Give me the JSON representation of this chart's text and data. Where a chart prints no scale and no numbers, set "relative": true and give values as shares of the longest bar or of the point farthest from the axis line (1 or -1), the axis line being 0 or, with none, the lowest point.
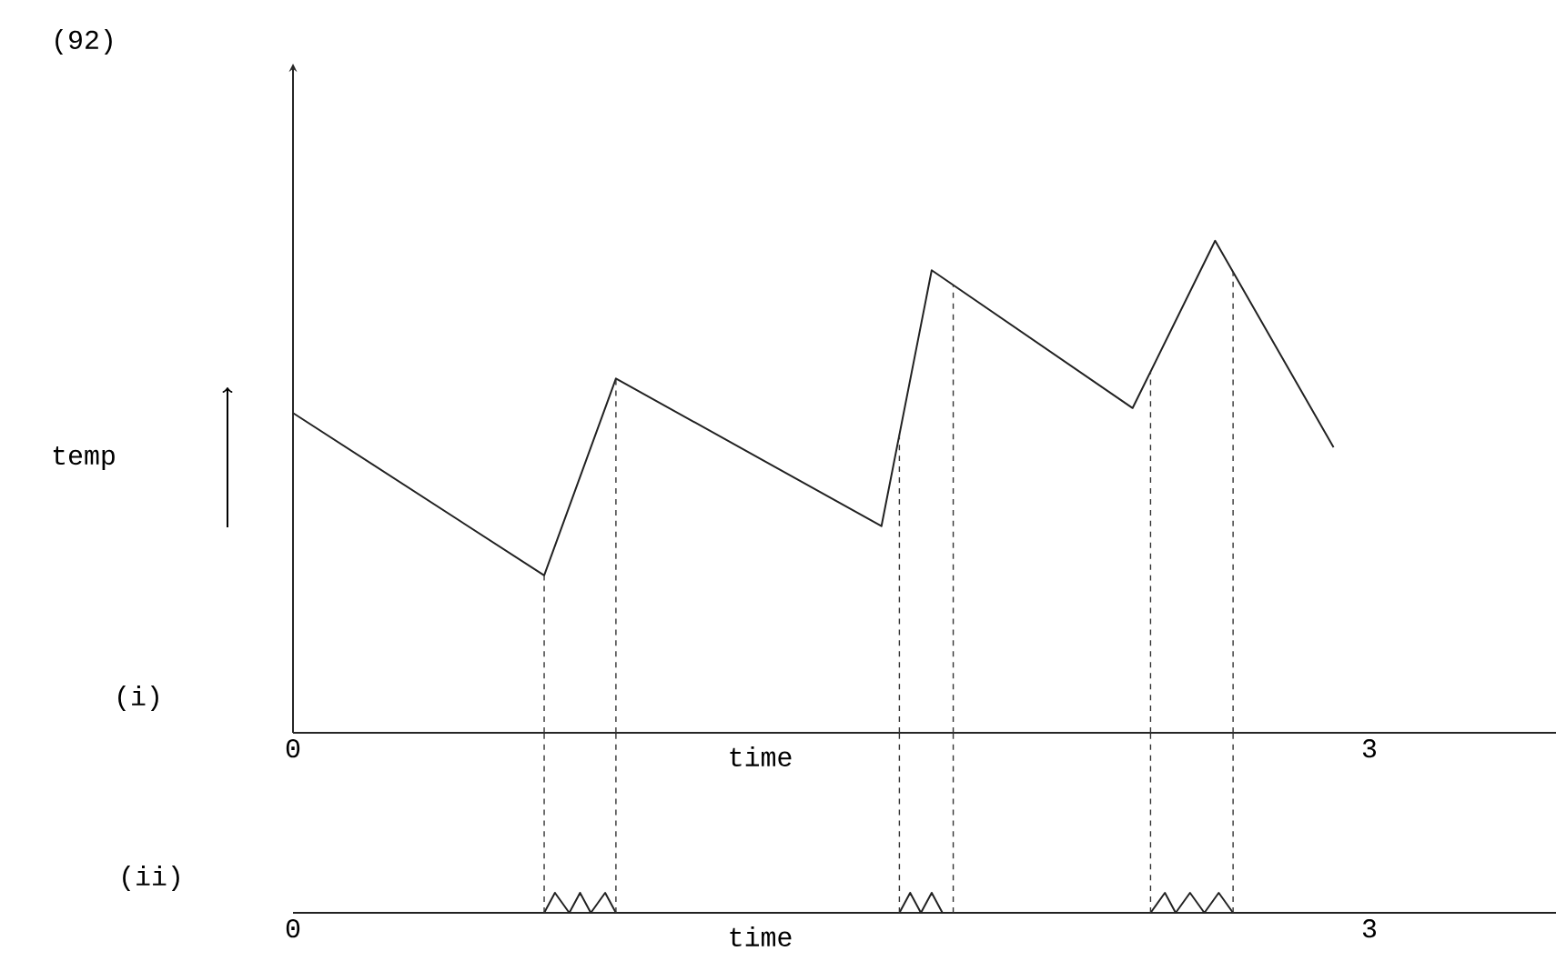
{
  "chart_data": [
    {
      "type": "line",
      "relative": true,
      "x": [
        0,
        0.7,
        0.9,
        1.64,
        1.78,
        2.34,
        2.57,
        2.9
      ],
      "values": [
        0.65,
        0.32,
        0.72,
        0.42,
        0.94,
        0.66,
        1,
        0.58
      ],
      "color": "#222222",
      "xlim": [
        0,
        3.52
      ],
      "xticks": [
        0,
        3
      ],
      "xlabel": "time",
      "ylabel": "temp",
      "annotations": [
        "(92)",
        "(i)"
      ],
      "ref_lines": [
        {
          "axis": "x",
          "value": 0.7,
          "line_style": "dashed"
        },
        {
          "axis": "x",
          "value": 0.9,
          "line_style": "dashed"
        },
        {
          "axis": "x",
          "value": 1.69,
          "line_style": "dashed"
        },
        {
          "axis": "x",
          "value": 1.84,
          "line_style": "dashed"
        },
        {
          "axis": "x",
          "value": 2.39,
          "line_style": "dashed"
        },
        {
          "axis": "x",
          "value": 2.62,
          "line_style": "dashed"
        }
      ]
    },
    {
      "type": "line",
      "relative": true,
      "color": "#222222",
      "xlim": [
        0,
        3.52
      ],
      "xticks": [
        0,
        3
      ],
      "xlabel": "time",
      "annotations": [
        "(ii)"
      ],
      "x": [
        0,
        0.7,
        0.73,
        0.77,
        0.8,
        0.83,
        0.87,
        0.9,
        1.69,
        1.72,
        1.75,
        1.78,
        1.81,
        1.84,
        2.39,
        2.43,
        2.46,
        2.5,
        2.54,
        2.58,
        2.62,
        3.52
      ],
      "values": [
        0,
        0,
        1,
        0,
        1,
        0,
        1,
        0,
        0,
        1,
        0,
        1,
        0,
        0,
        0,
        1,
        0,
        1,
        0,
        1,
        0,
        0
      ],
      "ref_lines": [
        {
          "axis": "x",
          "value": 0.7,
          "line_style": "dashed"
        },
        {
          "axis": "x",
          "value": 0.9,
          "line_style": "dashed"
        },
        {
          "axis": "x",
          "value": 1.69,
          "line_style": "dashed"
        },
        {
          "axis": "x",
          "value": 1.84,
          "line_style": "dashed"
        },
        {
          "axis": "x",
          "value": 2.39,
          "line_style": "dashed"
        },
        {
          "axis": "x",
          "value": 2.62,
          "line_style": "dashed"
        }
      ]
    }
  ]
}
